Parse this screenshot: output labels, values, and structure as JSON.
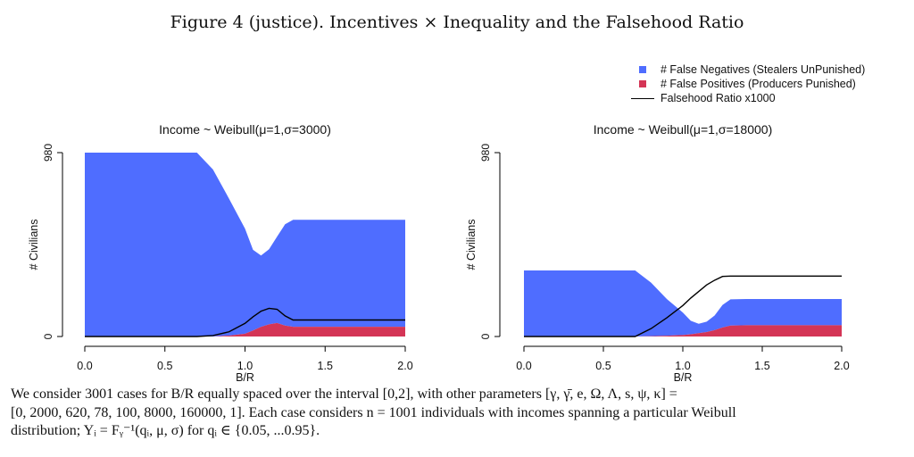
{
  "figure_title": "Figure  4 (justice). Incentives × Inequality and the Falsehood Ratio",
  "legend": [
    {
      "label": "# False Negatives (Stealers UnPunished)",
      "kind": "square",
      "color": "#4f6dff"
    },
    {
      "label": "# False Positives (Producers Punished)",
      "kind": "square",
      "color": "#d43556"
    },
    {
      "label": "Falsehood Ratio x1000",
      "kind": "line",
      "color": "#000000"
    }
  ],
  "colors": {
    "false_negatives": "#4f6dff",
    "false_positives": "#d43556",
    "ratio_line": "#000000",
    "axis": "#000000"
  },
  "chart_data": [
    {
      "type": "area",
      "title": "Income ~ Weibull(μ=1,σ=3000)",
      "xlabel": "B/R",
      "ylabel": "# Civilians",
      "xlim": [
        0,
        2
      ],
      "ylim": [
        0,
        980
      ],
      "x_ticks": [
        "0.0",
        "0.5",
        "1.0",
        "1.5",
        "2.0"
      ],
      "y_ticks": [
        "0",
        "980"
      ],
      "x": [
        0.0,
        0.5,
        0.7,
        0.8,
        0.9,
        1.0,
        1.05,
        1.1,
        1.15,
        1.2,
        1.25,
        1.3,
        1.4,
        1.6,
        1.8,
        2.0
      ],
      "series": [
        {
          "name": "# False Negatives (Stealers UnPunished)",
          "kind": "stacked-area",
          "values": [
            980,
            980,
            980,
            890,
            730,
            560,
            430,
            380,
            400,
            460,
            540,
            570,
            570,
            570,
            570,
            570
          ]
        },
        {
          "name": "# False Positives (Producers Punished)",
          "kind": "stacked-area",
          "values": [
            0,
            0,
            0,
            0,
            5,
            15,
            32,
            52,
            65,
            72,
            58,
            52,
            52,
            52,
            52,
            52
          ]
        },
        {
          "name": "Falsehood Ratio x1000",
          "kind": "line",
          "values": [
            0,
            0,
            0,
            5,
            25,
            70,
            105,
            135,
            150,
            145,
            110,
            88,
            88,
            88,
            88,
            88
          ]
        }
      ]
    },
    {
      "type": "area",
      "title": "Income ~ Weibull(μ=1,σ=18000)",
      "xlabel": "B/R",
      "ylabel": "# Civilians",
      "xlim": [
        0,
        2
      ],
      "ylim": [
        0,
        980
      ],
      "x_ticks": [
        "0.0",
        "0.5",
        "1.0",
        "1.5",
        "2.0"
      ],
      "y_ticks": [
        "0",
        "980"
      ],
      "x": [
        0.0,
        0.5,
        0.7,
        0.8,
        0.9,
        1.0,
        1.05,
        1.1,
        1.15,
        1.2,
        1.25,
        1.3,
        1.4,
        1.6,
        1.8,
        2.0
      ],
      "series": [
        {
          "name": "# False Negatives (Stealers UnPunished)",
          "kind": "stacked-area",
          "values": [
            352,
            352,
            352,
            285,
            195,
            120,
            72,
            50,
            55,
            78,
            120,
            140,
            140,
            140,
            140,
            140
          ]
        },
        {
          "name": "# False Positives (Producers Punished)",
          "kind": "stacked-area",
          "values": [
            0,
            0,
            0,
            2,
            4,
            8,
            12,
            18,
            24,
            34,
            48,
            58,
            60,
            60,
            60,
            60
          ]
        },
        {
          "name": "Falsehood Ratio x1000",
          "kind": "line",
          "values": [
            0,
            0,
            0,
            42,
            100,
            165,
            205,
            240,
            275,
            300,
            320,
            322,
            322,
            322,
            322,
            322
          ]
        }
      ]
    }
  ],
  "caption": {
    "line1": "We consider 3001 cases for B/R equally spaced over the interval [0,2], with other parameters [γ, γ̄, e, Ω, Λ, s, ψ, κ] =",
    "line2": "[0, 2000, 620, 78, 100, 8000, 160000, 1].  Each case considers n = 1001 individuals with incomes spanning a particular Weibull",
    "line3": "distribution; Yᵢ = Fᵧ⁻¹(qᵢ, μ, σ) for qᵢ ∈ {0.05, ...0.95}."
  }
}
